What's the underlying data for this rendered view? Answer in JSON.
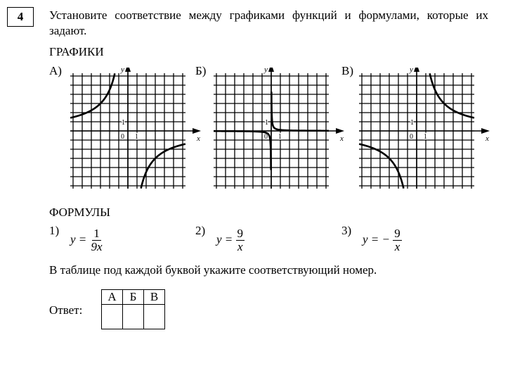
{
  "task_number": "4",
  "question": "Установите соответствие между графиками функций и формулами, которые их задают.",
  "graphs_heading": "ГРАФИКИ",
  "graphs": [
    {
      "label": "А)",
      "curve_k": -9,
      "axis_x": "x",
      "axis_y": "y",
      "tick_x": "1",
      "tick_y": "1",
      "origin": "0"
    },
    {
      "label": "Б)",
      "curve_k": 0.1111,
      "axis_x": "x",
      "axis_y": "y",
      "tick_x": "1",
      "tick_y": "1",
      "origin": "0"
    },
    {
      "label": "В)",
      "curve_k": 9,
      "axis_x": "x",
      "axis_y": "y",
      "tick_x": "1",
      "tick_y": "1",
      "origin": "0"
    }
  ],
  "formulas_heading": "ФОРМУЛЫ",
  "formulas": [
    {
      "num": "1)",
      "lhs": "y =",
      "sign": "",
      "numerator": "1",
      "denominator": "9x"
    },
    {
      "num": "2)",
      "lhs": "y =",
      "sign": "",
      "numerator": "9",
      "denominator": "x"
    },
    {
      "num": "3)",
      "lhs": "y =",
      "sign": "−",
      "numerator": "9",
      "denominator": "x"
    }
  ],
  "instruction": "В таблице под каждой буквой укажите соответствующий номер.",
  "answer_label": "Ответ:",
  "answer_table": {
    "headers": [
      "А",
      "Б",
      "В"
    ],
    "values": [
      "",
      "",
      ""
    ]
  }
}
